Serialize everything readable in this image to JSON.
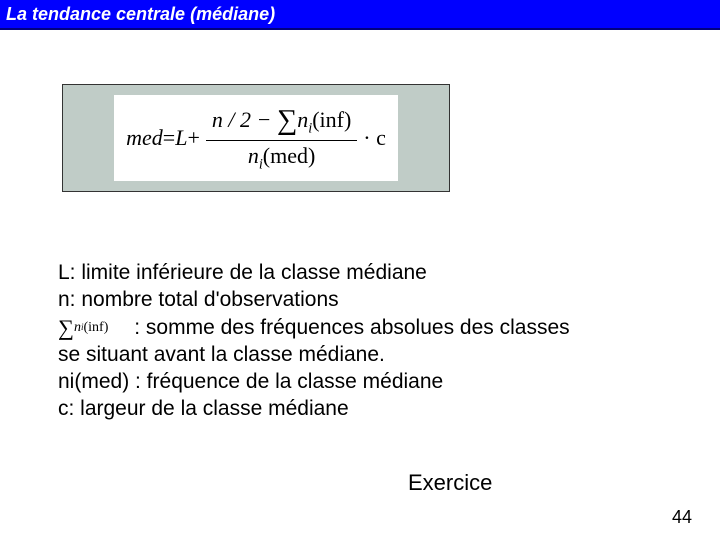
{
  "header": {
    "title": "La tendance centrale (médiane)"
  },
  "formula": {
    "lhs": "med",
    "eq": " = ",
    "L": "L",
    "plus": " + ",
    "num_left": "n / 2 − ",
    "num_sum": "∑",
    "num_ni": "n",
    "num_ni_sub": "i",
    "num_inf": "(inf)",
    "den_ni": "n",
    "den_ni_sub": "i",
    "den_med": "(med)",
    "dot_c": " · c"
  },
  "defs": {
    "l1": "L: limite inférieure de la classe médiane",
    "l2": "n: nombre total d'observations",
    "inline_sum": "∑",
    "inline_ni": "n",
    "inline_ni_sub": "i",
    "inline_inf": "(inf)",
    "l3": "  : somme des fréquences absolues des classes",
    "l4": "se situant avant la classe médiane.",
    "l5": "ni(med) : fréquence de la classe médiane",
    "l6": "c: largeur de la classe médiane"
  },
  "exercise": "Exercice",
  "page_number": "44",
  "colors": {
    "header_bg": "#0000ff",
    "formula_bg": "#c0ccc7",
    "page_bg": "#ffffff"
  }
}
